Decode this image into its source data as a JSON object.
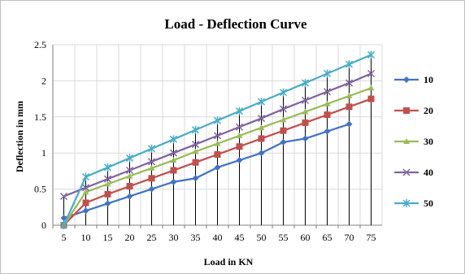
{
  "chart_data": {
    "type": "line",
    "title": "Load - Deflection Curve",
    "xlabel": "Load in KN",
    "ylabel": "Deflection in mm",
    "categories": [
      "5",
      "10",
      "15",
      "20",
      "25",
      "30",
      "35",
      "40",
      "45",
      "50",
      "55",
      "60",
      "65",
      "70",
      "75"
    ],
    "y_ticks": [
      "0",
      "0.5",
      "1",
      "1.5",
      "2",
      "2.5"
    ],
    "ylim": [
      0,
      2.5
    ],
    "grid": true,
    "legend_position": "right",
    "series": [
      {
        "name": "10",
        "color": "#4472C4",
        "marker": "diamond",
        "values": [
          0.1,
          0.2,
          0.3,
          0.4,
          0.5,
          0.6,
          0.65,
          0.8,
          0.9,
          1.0,
          1.15,
          1.2,
          1.3,
          1.4,
          null
        ]
      },
      {
        "name": "20",
        "color": "#C0504D",
        "marker": "square",
        "values": [
          0.0,
          0.31,
          0.43,
          0.54,
          0.65,
          0.76,
          0.87,
          0.98,
          1.09,
          1.2,
          1.31,
          1.42,
          1.53,
          1.64,
          1.75
        ]
      },
      {
        "name": "30",
        "color": "#9BBB59",
        "marker": "triangle",
        "values": [
          0.0,
          0.46,
          0.57,
          0.68,
          0.79,
          0.9,
          1.02,
          1.13,
          1.24,
          1.35,
          1.46,
          1.57,
          1.68,
          1.79,
          1.9
        ]
      },
      {
        "name": "40",
        "color": "#8064A2",
        "marker": "x",
        "values": [
          0.4,
          0.52,
          0.64,
          0.76,
          0.88,
          1.0,
          1.12,
          1.24,
          1.36,
          1.48,
          1.61,
          1.73,
          1.85,
          1.97,
          2.1
        ]
      },
      {
        "name": "50",
        "color": "#4BACC6",
        "marker": "star",
        "values": [
          0.0,
          0.67,
          0.8,
          0.93,
          1.06,
          1.19,
          1.32,
          1.45,
          1.58,
          1.71,
          1.84,
          1.97,
          2.1,
          2.23,
          2.36
        ]
      }
    ]
  }
}
